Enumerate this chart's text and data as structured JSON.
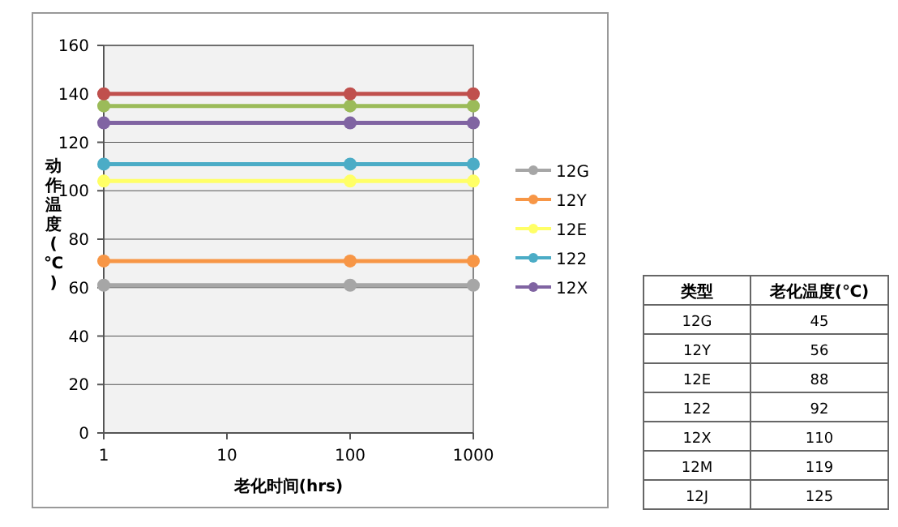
{
  "chart_data": {
    "type": "line",
    "xlabel": "老化时间(hrs)",
    "ylabel": "动作温度(℃)",
    "x": [
      1,
      100,
      1000
    ],
    "log": "x",
    "xlim": [
      1,
      1000
    ],
    "xticks": [
      1,
      10,
      100,
      1000
    ],
    "ylim": [
      0,
      160
    ],
    "yticks": [
      0,
      20,
      40,
      60,
      80,
      100,
      120,
      140,
      160
    ],
    "grid": "y",
    "legend": "right",
    "marker": "circle",
    "line_style": "solid",
    "series": [
      {
        "name": "12G",
        "color": "#a6a6a6",
        "values": [
          61,
          61,
          61
        ]
      },
      {
        "name": "12Y",
        "color": "#f79646",
        "values": [
          71,
          71,
          71
        ]
      },
      {
        "name": "12E",
        "color": "#ffff66",
        "values": [
          104,
          104,
          104
        ]
      },
      {
        "name": "122",
        "color": "#4bacc6",
        "values": [
          111,
          111,
          111
        ]
      },
      {
        "name": "12X",
        "color": "#8064a2",
        "values": [
          128,
          128,
          128
        ]
      },
      {
        "color": "#9bbb59",
        "values": [
          135,
          135,
          135
        ]
      },
      {
        "color": "#c0504d",
        "values": [
          140,
          140,
          140
        ]
      }
    ],
    "annotations": [
      "类型",
      "老化温度(℃)",
      "12G",
      "45",
      "12Y",
      "56",
      "12E",
      "88",
      "122",
      "92",
      "12X",
      "110",
      "12M",
      "119",
      "12J",
      "125"
    ]
  }
}
